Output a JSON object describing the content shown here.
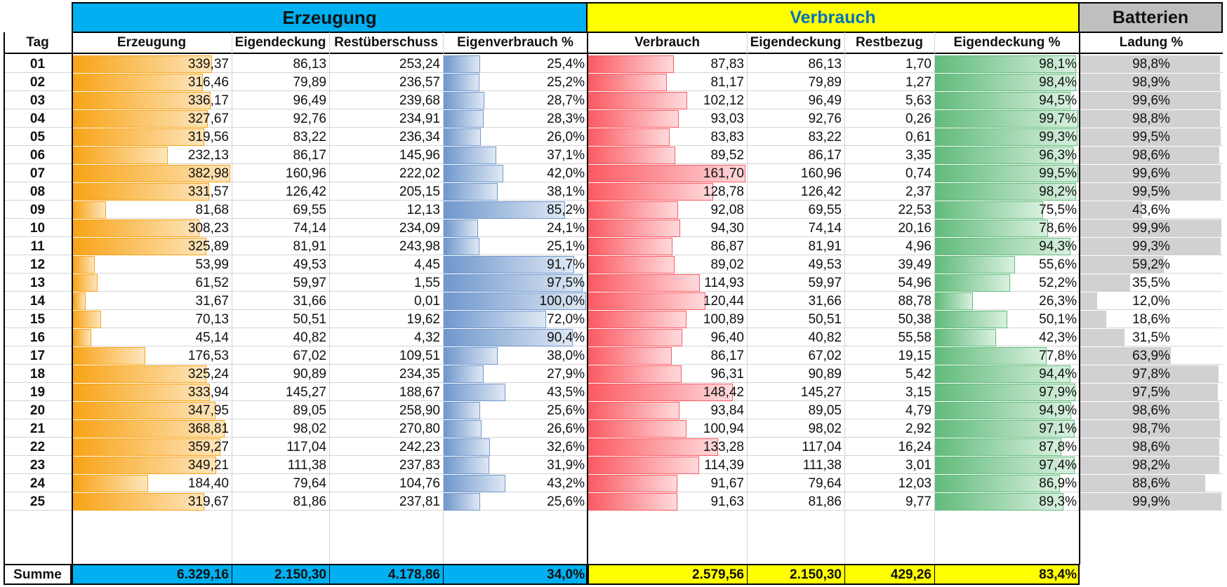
{
  "groups": {
    "erzeugung": "Erzeugung",
    "verbrauch": "Verbrauch",
    "batterien": "Batterien"
  },
  "headers": {
    "tag": "Tag",
    "erzeugung": "Erzeugung",
    "eigendeckung1": "Eigendeckung",
    "restueberschuss": "Restüberschuss",
    "eigenverbrauch_pct": "Eigenverbrauch %",
    "verbrauch": "Verbrauch",
    "eigendeckung2": "Eigendeckung",
    "restbezug": "Restbezug",
    "eigendeckung_pct": "Eigendeckung %",
    "ladung_pct": "Ladung %"
  },
  "colors": {
    "erzeugung_header": "#00b0f0",
    "verbrauch_header": "#ffff00",
    "verbrauch_text": "#0070c0",
    "batterien_header": "#bfbfbf",
    "bar_orange": "#f8a316",
    "bar_blue": "#6f97cc",
    "bar_red": "#fb5a62",
    "bar_green": "#62bb7b",
    "bar_grey": "#d1d1d1"
  },
  "rows": [
    {
      "tag": "01",
      "erzeugung": "339,37",
      "eigendeckung1": "86,13",
      "restueberschuss": "253,24",
      "eigenverbrauch_pct": "25,4%",
      "verbrauch": "87,83",
      "eigendeckung2": "86,13",
      "restbezug": "1,70",
      "eigendeckung_pct": "98,1%",
      "ladung_pct": "98,8%"
    },
    {
      "tag": "02",
      "erzeugung": "316,46",
      "eigendeckung1": "79,89",
      "restueberschuss": "236,57",
      "eigenverbrauch_pct": "25,2%",
      "verbrauch": "81,17",
      "eigendeckung2": "79,89",
      "restbezug": "1,27",
      "eigendeckung_pct": "98,4%",
      "ladung_pct": "98,9%"
    },
    {
      "tag": "03",
      "erzeugung": "336,17",
      "eigendeckung1": "96,49",
      "restueberschuss": "239,68",
      "eigenverbrauch_pct": "28,7%",
      "verbrauch": "102,12",
      "eigendeckung2": "96,49",
      "restbezug": "5,63",
      "eigendeckung_pct": "94,5%",
      "ladung_pct": "99,6%"
    },
    {
      "tag": "04",
      "erzeugung": "327,67",
      "eigendeckung1": "92,76",
      "restueberschuss": "234,91",
      "eigenverbrauch_pct": "28,3%",
      "verbrauch": "93,03",
      "eigendeckung2": "92,76",
      "restbezug": "0,26",
      "eigendeckung_pct": "99,7%",
      "ladung_pct": "98,8%"
    },
    {
      "tag": "05",
      "erzeugung": "319,56",
      "eigendeckung1": "83,22",
      "restueberschuss": "236,34",
      "eigenverbrauch_pct": "26,0%",
      "verbrauch": "83,83",
      "eigendeckung2": "83,22",
      "restbezug": "0,61",
      "eigendeckung_pct": "99,3%",
      "ladung_pct": "99,5%"
    },
    {
      "tag": "06",
      "erzeugung": "232,13",
      "eigendeckung1": "86,17",
      "restueberschuss": "145,96",
      "eigenverbrauch_pct": "37,1%",
      "verbrauch": "89,52",
      "eigendeckung2": "86,17",
      "restbezug": "3,35",
      "eigendeckung_pct": "96,3%",
      "ladung_pct": "98,6%"
    },
    {
      "tag": "07",
      "erzeugung": "382,98",
      "eigendeckung1": "160,96",
      "restueberschuss": "222,02",
      "eigenverbrauch_pct": "42,0%",
      "verbrauch": "161,70",
      "eigendeckung2": "160,96",
      "restbezug": "0,74",
      "eigendeckung_pct": "99,5%",
      "ladung_pct": "99,6%"
    },
    {
      "tag": "08",
      "erzeugung": "331,57",
      "eigendeckung1": "126,42",
      "restueberschuss": "205,15",
      "eigenverbrauch_pct": "38,1%",
      "verbrauch": "128,78",
      "eigendeckung2": "126,42",
      "restbezug": "2,37",
      "eigendeckung_pct": "98,2%",
      "ladung_pct": "99,5%"
    },
    {
      "tag": "09",
      "erzeugung": "81,68",
      "eigendeckung1": "69,55",
      "restueberschuss": "12,13",
      "eigenverbrauch_pct": "85,2%",
      "verbrauch": "92,08",
      "eigendeckung2": "69,55",
      "restbezug": "22,53",
      "eigendeckung_pct": "75,5%",
      "ladung_pct": "43,6%"
    },
    {
      "tag": "10",
      "erzeugung": "308,23",
      "eigendeckung1": "74,14",
      "restueberschuss": "234,09",
      "eigenverbrauch_pct": "24,1%",
      "verbrauch": "94,30",
      "eigendeckung2": "74,14",
      "restbezug": "20,16",
      "eigendeckung_pct": "78,6%",
      "ladung_pct": "99,9%"
    },
    {
      "tag": "11",
      "erzeugung": "325,89",
      "eigendeckung1": "81,91",
      "restueberschuss": "243,98",
      "eigenverbrauch_pct": "25,1%",
      "verbrauch": "86,87",
      "eigendeckung2": "81,91",
      "restbezug": "4,96",
      "eigendeckung_pct": "94,3%",
      "ladung_pct": "99,3%"
    },
    {
      "tag": "12",
      "erzeugung": "53,99",
      "eigendeckung1": "49,53",
      "restueberschuss": "4,45",
      "eigenverbrauch_pct": "91,7%",
      "verbrauch": "89,02",
      "eigendeckung2": "49,53",
      "restbezug": "39,49",
      "eigendeckung_pct": "55,6%",
      "ladung_pct": "59,2%"
    },
    {
      "tag": "13",
      "erzeugung": "61,52",
      "eigendeckung1": "59,97",
      "restueberschuss": "1,55",
      "eigenverbrauch_pct": "97,5%",
      "verbrauch": "114,93",
      "eigendeckung2": "59,97",
      "restbezug": "54,96",
      "eigendeckung_pct": "52,2%",
      "ladung_pct": "35,5%"
    },
    {
      "tag": "14",
      "erzeugung": "31,67",
      "eigendeckung1": "31,66",
      "restueberschuss": "0,01",
      "eigenverbrauch_pct": "100,0%",
      "verbrauch": "120,44",
      "eigendeckung2": "31,66",
      "restbezug": "88,78",
      "eigendeckung_pct": "26,3%",
      "ladung_pct": "12,0%"
    },
    {
      "tag": "15",
      "erzeugung": "70,13",
      "eigendeckung1": "50,51",
      "restueberschuss": "19,62",
      "eigenverbrauch_pct": "72,0%",
      "verbrauch": "100,89",
      "eigendeckung2": "50,51",
      "restbezug": "50,38",
      "eigendeckung_pct": "50,1%",
      "ladung_pct": "18,6%"
    },
    {
      "tag": "16",
      "erzeugung": "45,14",
      "eigendeckung1": "40,82",
      "restueberschuss": "4,32",
      "eigenverbrauch_pct": "90,4%",
      "verbrauch": "96,40",
      "eigendeckung2": "40,82",
      "restbezug": "55,58",
      "eigendeckung_pct": "42,3%",
      "ladung_pct": "31,5%"
    },
    {
      "tag": "17",
      "erzeugung": "176,53",
      "eigendeckung1": "67,02",
      "restueberschuss": "109,51",
      "eigenverbrauch_pct": "38,0%",
      "verbrauch": "86,17",
      "eigendeckung2": "67,02",
      "restbezug": "19,15",
      "eigendeckung_pct": "77,8%",
      "ladung_pct": "63,9%"
    },
    {
      "tag": "18",
      "erzeugung": "325,24",
      "eigendeckung1": "90,89",
      "restueberschuss": "234,35",
      "eigenverbrauch_pct": "27,9%",
      "verbrauch": "96,31",
      "eigendeckung2": "90,89",
      "restbezug": "5,42",
      "eigendeckung_pct": "94,4%",
      "ladung_pct": "97,8%"
    },
    {
      "tag": "19",
      "erzeugung": "333,94",
      "eigendeckung1": "145,27",
      "restueberschuss": "188,67",
      "eigenverbrauch_pct": "43,5%",
      "verbrauch": "148,42",
      "eigendeckung2": "145,27",
      "restbezug": "3,15",
      "eigendeckung_pct": "97,9%",
      "ladung_pct": "97,5%"
    },
    {
      "tag": "20",
      "erzeugung": "347,95",
      "eigendeckung1": "89,05",
      "restueberschuss": "258,90",
      "eigenverbrauch_pct": "25,6%",
      "verbrauch": "93,84",
      "eigendeckung2": "89,05",
      "restbezug": "4,79",
      "eigendeckung_pct": "94,9%",
      "ladung_pct": "98,6%"
    },
    {
      "tag": "21",
      "erzeugung": "368,81",
      "eigendeckung1": "98,02",
      "restueberschuss": "270,80",
      "eigenverbrauch_pct": "26,6%",
      "verbrauch": "100,94",
      "eigendeckung2": "98,02",
      "restbezug": "2,92",
      "eigendeckung_pct": "97,1%",
      "ladung_pct": "98,7%"
    },
    {
      "tag": "22",
      "erzeugung": "359,27",
      "eigendeckung1": "117,04",
      "restueberschuss": "242,23",
      "eigenverbrauch_pct": "32,6%",
      "verbrauch": "133,28",
      "eigendeckung2": "117,04",
      "restbezug": "16,24",
      "eigendeckung_pct": "87,8%",
      "ladung_pct": "98,6%"
    },
    {
      "tag": "23",
      "erzeugung": "349,21",
      "eigendeckung1": "111,38",
      "restueberschuss": "237,83",
      "eigenverbrauch_pct": "31,9%",
      "verbrauch": "114,39",
      "eigendeckung2": "111,38",
      "restbezug": "3,01",
      "eigendeckung_pct": "97,4%",
      "ladung_pct": "98,2%"
    },
    {
      "tag": "24",
      "erzeugung": "184,40",
      "eigendeckung1": "79,64",
      "restueberschuss": "104,76",
      "eigenverbrauch_pct": "43,2%",
      "verbrauch": "91,67",
      "eigendeckung2": "79,64",
      "restbezug": "12,03",
      "eigendeckung_pct": "86,9%",
      "ladung_pct": "88,6%"
    },
    {
      "tag": "25",
      "erzeugung": "319,67",
      "eigendeckung1": "81,86",
      "restueberschuss": "237,81",
      "eigenverbrauch_pct": "25,6%",
      "verbrauch": "91,63",
      "eigendeckung2": "81,86",
      "restbezug": "9,77",
      "eigendeckung_pct": "89,3%",
      "ladung_pct": "99,9%"
    }
  ],
  "summe": {
    "label": "Summe",
    "erzeugung": "6.329,16",
    "eigendeckung1": "2.150,30",
    "restueberschuss": "4.178,86",
    "eigenverbrauch_pct": "34,0%",
    "verbrauch": "2.579,56",
    "eigendeckung2": "2.150,30",
    "restbezug": "429,26",
    "eigendeckung_pct": "83,4%"
  }
}
